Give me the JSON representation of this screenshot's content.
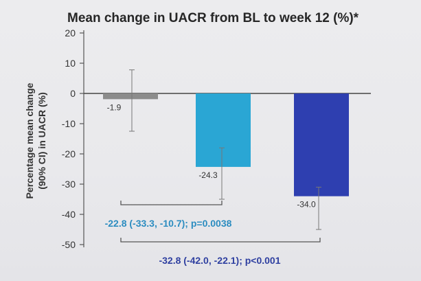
{
  "chart_data": {
    "type": "bar",
    "title": "Mean change in UACR from BL to week 12 (%)*",
    "ylabel_line1": "Percentage mean change",
    "ylabel_line2": "(90% CI) in UACR (%)",
    "ylim": [
      -50,
      20
    ],
    "yticks": [
      20,
      10,
      0,
      -10,
      -20,
      -30,
      -40,
      -50
    ],
    "grid": false,
    "bars": [
      {
        "value": -1.9,
        "label": "-1.9",
        "ci": [
          -12.5,
          7.8
        ],
        "color": "#8c8c8c"
      },
      {
        "value": -24.3,
        "label": "-24.3",
        "ci": [
          -35.0,
          -18.0
        ],
        "color": "#2aa6d4"
      },
      {
        "value": -34.0,
        "label": "-34.0",
        "ci": [
          -45.0,
          -31.0
        ],
        "color": "#2e3fb0"
      }
    ],
    "comparisons": [
      {
        "text": "-22.8 (-33.3, -10.7); p=0.0038",
        "from": 0,
        "to": 1,
        "color": "#2b8cc0"
      },
      {
        "text": "-32.8 (-42.0, -22.1); p<0.001",
        "from": 0,
        "to": 2,
        "color": "#2e3fa0"
      }
    ]
  }
}
